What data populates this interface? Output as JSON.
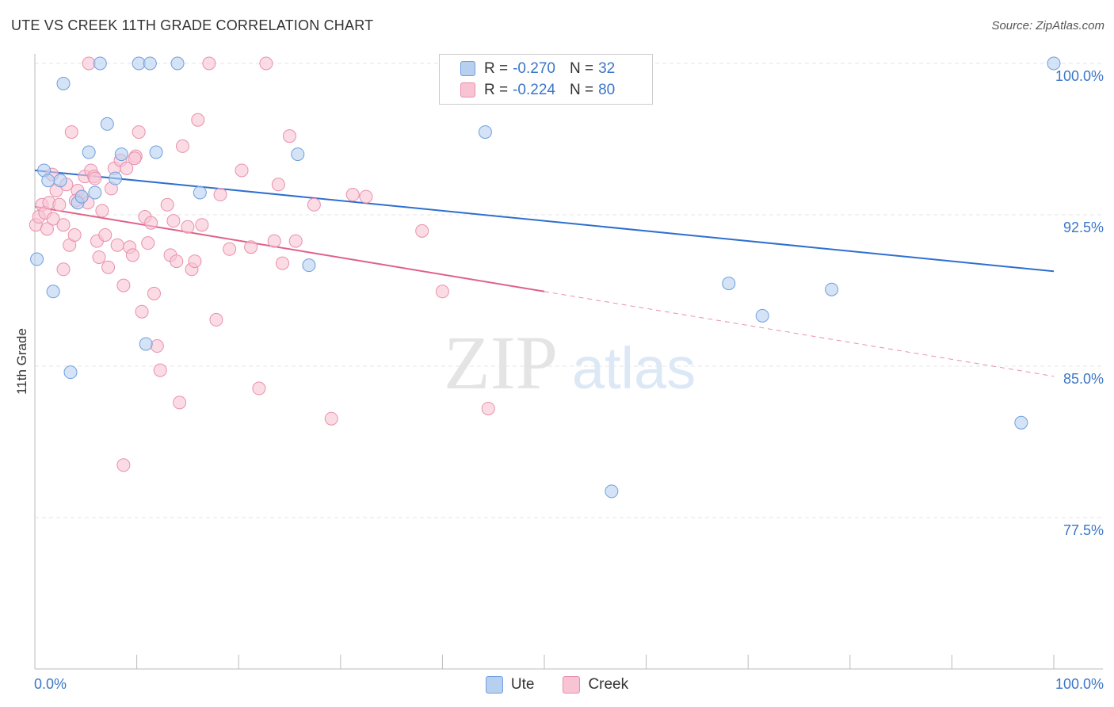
{
  "title": "UTE VS CREEK 11TH GRADE CORRELATION CHART",
  "source": "Source: ZipAtlas.com",
  "watermark": {
    "zip": "ZIP",
    "atlas": "atlas"
  },
  "stats": [
    {
      "r_label": "R =",
      "r_value": "-0.270",
      "n_label": "N =",
      "n_value": "32"
    },
    {
      "r_label": "R =",
      "r_value": "-0.224",
      "n_label": "N =",
      "n_value": "80"
    }
  ],
  "colors": {
    "ute_fill": "#b8d0f0",
    "ute_stroke": "#6f9fde",
    "ute_line": "#2e6fcf",
    "creek_fill": "#f8c4d4",
    "creek_stroke": "#e98fae",
    "creek_line": "#e0608a",
    "axis_label": "#3a76c8"
  },
  "chart_data": {
    "type": "scatter",
    "title": "UTE VS CREEK 11TH GRADE CORRELATION CHART",
    "xlabel": "",
    "ylabel": "11th Grade",
    "xlim": [
      0,
      100
    ],
    "ylim": [
      70.5,
      101.5
    ],
    "x_tick_labels": [
      "0.0%",
      "100.0%"
    ],
    "y_ticks": [
      77.5,
      85.0,
      92.5,
      100.0
    ],
    "y_tick_labels": [
      "77.5%",
      "85.0%",
      "92.5%",
      "100.0%"
    ],
    "grid": true,
    "legend_position": "bottom-center",
    "series": [
      {
        "name": "Ute",
        "trend": {
          "x0": 0,
          "y0": 94.7,
          "x1": 100,
          "y1": 89.7,
          "solid_until": 100
        },
        "points": [
          [
            0.2,
            90.3
          ],
          [
            0.9,
            94.7
          ],
          [
            1.3,
            94.2
          ],
          [
            1.8,
            88.7
          ],
          [
            2.5,
            94.2
          ],
          [
            2.8,
            99.0
          ],
          [
            3.5,
            84.7
          ],
          [
            4.2,
            93.1
          ],
          [
            4.6,
            93.4
          ],
          [
            5.3,
            95.6
          ],
          [
            5.9,
            93.6
          ],
          [
            6.4,
            100.0
          ],
          [
            7.1,
            97.0
          ],
          [
            7.9,
            94.3
          ],
          [
            8.5,
            95.5
          ],
          [
            10.2,
            100.0
          ],
          [
            10.9,
            86.1
          ],
          [
            11.3,
            100.0
          ],
          [
            11.9,
            95.6
          ],
          [
            14.0,
            100.0
          ],
          [
            16.2,
            93.6
          ],
          [
            25.8,
            95.5
          ],
          [
            26.9,
            90.0
          ],
          [
            44.2,
            96.6
          ],
          [
            52.4,
            100.0
          ],
          [
            53.8,
            100.0
          ],
          [
            56.6,
            78.8
          ],
          [
            68.1,
            89.1
          ],
          [
            71.4,
            87.5
          ],
          [
            78.2,
            88.8
          ],
          [
            96.8,
            82.2
          ],
          [
            100.0,
            100.0
          ]
        ]
      },
      {
        "name": "Creek",
        "trend": {
          "x0": 0,
          "y0": 92.9,
          "x1": 100,
          "y1": 84.5,
          "solid_until": 50
        },
        "points": [
          [
            0.1,
            92.0
          ],
          [
            0.4,
            92.4
          ],
          [
            0.7,
            93.0
          ],
          [
            1.0,
            92.6
          ],
          [
            1.2,
            91.8
          ],
          [
            1.4,
            93.1
          ],
          [
            1.8,
            92.3
          ],
          [
            2.1,
            93.7
          ],
          [
            2.4,
            93.0
          ],
          [
            2.8,
            92.0
          ],
          [
            3.1,
            94.0
          ],
          [
            3.4,
            91.0
          ],
          [
            3.6,
            96.6
          ],
          [
            3.9,
            91.5
          ],
          [
            4.2,
            93.7
          ],
          [
            4.6,
            93.4
          ],
          [
            4.9,
            94.4
          ],
          [
            5.2,
            93.1
          ],
          [
            5.5,
            94.7
          ],
          [
            5.8,
            94.4
          ],
          [
            6.1,
            91.2
          ],
          [
            6.3,
            90.4
          ],
          [
            6.6,
            92.7
          ],
          [
            6.9,
            91.5
          ],
          [
            7.2,
            89.9
          ],
          [
            7.5,
            93.8
          ],
          [
            7.8,
            94.8
          ],
          [
            8.1,
            91.0
          ],
          [
            8.4,
            95.2
          ],
          [
            8.7,
            89.0
          ],
          [
            9.0,
            94.8
          ],
          [
            9.3,
            90.9
          ],
          [
            9.6,
            90.5
          ],
          [
            9.9,
            95.4
          ],
          [
            10.2,
            96.6
          ],
          [
            10.5,
            87.7
          ],
          [
            10.8,
            92.4
          ],
          [
            11.1,
            91.1
          ],
          [
            11.4,
            92.1
          ],
          [
            11.7,
            88.6
          ],
          [
            12.0,
            86.0
          ],
          [
            12.3,
            84.8
          ],
          [
            13.0,
            93.0
          ],
          [
            13.3,
            90.5
          ],
          [
            13.6,
            92.2
          ],
          [
            13.9,
            90.2
          ],
          [
            14.2,
            83.2
          ],
          [
            14.5,
            95.9
          ],
          [
            15.0,
            91.9
          ],
          [
            15.4,
            89.8
          ],
          [
            15.7,
            90.2
          ],
          [
            16.0,
            97.2
          ],
          [
            16.4,
            92.0
          ],
          [
            17.1,
            100.0
          ],
          [
            17.8,
            87.3
          ],
          [
            18.2,
            93.5
          ],
          [
            19.1,
            90.8
          ],
          [
            20.3,
            94.7
          ],
          [
            21.2,
            90.9
          ],
          [
            22.0,
            83.9
          ],
          [
            22.7,
            100.0
          ],
          [
            23.5,
            91.2
          ],
          [
            23.9,
            94.0
          ],
          [
            24.3,
            90.1
          ],
          [
            25.0,
            96.4
          ],
          [
            25.6,
            91.2
          ],
          [
            27.4,
            93.0
          ],
          [
            29.1,
            82.4
          ],
          [
            31.2,
            93.5
          ],
          [
            32.5,
            93.4
          ],
          [
            38.0,
            91.7
          ],
          [
            40.0,
            88.7
          ],
          [
            44.5,
            82.9
          ],
          [
            5.3,
            100.0
          ],
          [
            8.7,
            80.1
          ],
          [
            2.8,
            89.8
          ],
          [
            5.9,
            94.3
          ],
          [
            9.8,
            95.3
          ],
          [
            1.7,
            94.5
          ],
          [
            4.0,
            93.2
          ]
        ]
      }
    ]
  },
  "legend": {
    "items": [
      "Ute",
      "Creek"
    ]
  }
}
